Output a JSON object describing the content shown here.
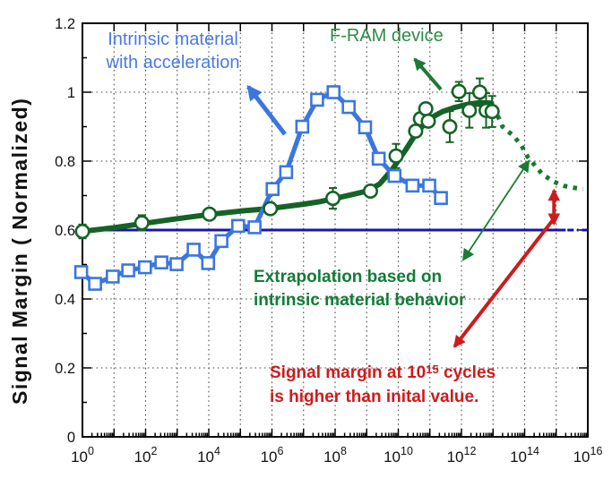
{
  "chart_data": {
    "type": "line",
    "title": "",
    "x_axis": {
      "scale": "log",
      "base_label": "10",
      "min_exponent": 0,
      "max_exponent": 16,
      "labeled_tick_exponents": [
        0,
        2,
        4,
        6,
        8,
        10,
        12,
        14,
        16
      ],
      "gridline_exponents": [
        1,
        2,
        3,
        4,
        5,
        6,
        7,
        8,
        9,
        10,
        11,
        12,
        13,
        14,
        15
      ]
    },
    "y_axis": {
      "label": "Signal Margin ( Normalized)",
      "min": 0,
      "max": 1.2,
      "ticks": [
        0,
        0.2,
        0.4,
        0.6,
        0.8,
        1.0,
        1.2
      ],
      "tick_labels": [
        "0",
        "0.2",
        "0.4",
        "0.6",
        "0.8",
        "1",
        "1.2"
      ],
      "gridline_values": [
        0.2,
        0.4,
        0.6,
        0.8,
        1.0
      ]
    },
    "series": [
      {
        "name": "Intrinsic material with acceleration",
        "marker": "square",
        "color": "#3b76e0",
        "points": [
          [
            -0.04,
            0.478
          ],
          [
            0.4,
            0.444
          ],
          [
            0.96,
            0.465
          ],
          [
            1.45,
            0.483
          ],
          [
            1.98,
            0.492
          ],
          [
            2.5,
            0.506
          ],
          [
            2.98,
            0.501
          ],
          [
            3.52,
            0.543
          ],
          [
            3.98,
            0.504
          ],
          [
            4.4,
            0.568
          ],
          [
            4.93,
            0.612
          ],
          [
            5.45,
            0.608
          ],
          [
            6.02,
            0.719
          ],
          [
            6.45,
            0.768
          ],
          [
            6.96,
            0.9
          ],
          [
            7.43,
            0.978
          ],
          [
            7.95,
            1.0
          ],
          [
            8.43,
            0.957
          ],
          [
            8.95,
            0.898
          ],
          [
            9.38,
            0.807
          ],
          [
            9.88,
            0.757
          ],
          [
            10.45,
            0.729
          ],
          [
            10.98,
            0.729
          ],
          [
            11.35,
            0.693
          ]
        ]
      },
      {
        "name": "F-RAM device",
        "marker": "circle",
        "color": "#156326",
        "points": [
          [
            0.0,
            0.596,
            0.02
          ],
          [
            1.88,
            0.621,
            0.022
          ],
          [
            4.02,
            0.646,
            0
          ],
          [
            5.95,
            0.662,
            0
          ],
          [
            7.93,
            0.692,
            0.03
          ],
          [
            9.12,
            0.713,
            0
          ],
          [
            9.93,
            0.815,
            0.035
          ],
          [
            10.55,
            0.887,
            0
          ],
          [
            10.7,
            0.923,
            0
          ],
          [
            10.87,
            0.952,
            0
          ],
          [
            10.95,
            0.916,
            0
          ],
          [
            11.63,
            0.9,
            0.045
          ],
          [
            11.92,
            1.002,
            0.028
          ],
          [
            12.25,
            0.947,
            0.05
          ],
          [
            12.58,
            1.0,
            0.04
          ],
          [
            12.78,
            0.947,
            0.05
          ],
          [
            12.97,
            0.944,
            0.045
          ]
        ],
        "trend": [
          [
            0,
            0.596
          ],
          [
            1,
            0.607
          ],
          [
            2,
            0.62
          ],
          [
            3,
            0.633
          ],
          [
            4,
            0.645
          ],
          [
            5,
            0.655
          ],
          [
            6,
            0.663
          ],
          [
            7,
            0.675
          ],
          [
            7.5,
            0.682
          ],
          [
            8,
            0.692
          ],
          [
            8.5,
            0.702
          ],
          [
            9,
            0.713
          ],
          [
            9.4,
            0.733
          ],
          [
            9.8,
            0.775
          ],
          [
            10.2,
            0.828
          ],
          [
            10.6,
            0.885
          ],
          [
            11.0,
            0.924
          ],
          [
            11.4,
            0.944
          ],
          [
            11.8,
            0.956
          ],
          [
            12.2,
            0.965
          ],
          [
            12.6,
            0.97
          ],
          [
            12.95,
            0.968
          ]
        ]
      },
      {
        "name": "Extrapolation based on intrinsic material behavior",
        "style": "dotted",
        "color": "#177a31",
        "points": [
          [
            13.02,
            0.958
          ],
          [
            13.3,
            0.9
          ],
          [
            13.65,
            0.873
          ],
          [
            13.9,
            0.845
          ],
          [
            14.1,
            0.812
          ],
          [
            14.35,
            0.785
          ],
          [
            14.55,
            0.763
          ],
          [
            14.9,
            0.741
          ],
          [
            15.25,
            0.728
          ],
          [
            15.6,
            0.722
          ],
          [
            15.85,
            0.719
          ]
        ]
      },
      {
        "name": "Initial value reference line",
        "style": "solid-then-dashdot",
        "color": "#1a13ad",
        "y": 0.6,
        "solid_to_exponent": 15.3
      }
    ]
  },
  "annotations": {
    "intrinsic_label": {
      "line1": "Intrinsic material",
      "line2": "with acceleration",
      "color": "#4a7ae8"
    },
    "fram_label": {
      "text": "F-RAM device",
      "color": "#2e8b47"
    },
    "extrapolation_note": {
      "line1": "Extrapolation based on",
      "line2": "intrinsic material behavior",
      "color": "#117c38"
    },
    "signal_note": {
      "line1_prefix": "Signal margin at 10",
      "line1_sup": "15",
      "line1_suffix": " cycles",
      "line2": "is higher than inital value.",
      "color": "#ce1b1b"
    },
    "arrows": [
      {
        "name": "intrinsic-label-arrow",
        "color": "#3b76e0",
        "width": 5,
        "from": [
          6.41,
          0.878
        ],
        "to": [
          5.25,
          1.016
        ],
        "heads": "end"
      },
      {
        "name": "fram-label-arrow",
        "color": "#1d7a35",
        "width": 4,
        "from": [
          11.35,
          1.008
        ],
        "to": [
          10.52,
          1.096
        ],
        "heads": "end"
      },
      {
        "name": "extrapolation-pointer-arrow",
        "color": "#1d7a35",
        "width": 1.8,
        "from": [
          12.06,
          0.514
        ],
        "to": [
          14.13,
          0.8
        ],
        "heads": "both"
      },
      {
        "name": "signal-pointer-arrow",
        "color": "#ce1b1b",
        "width": 4,
        "from": [
          14.9,
          0.63
        ],
        "to": [
          11.78,
          0.262
        ],
        "heads": "end"
      },
      {
        "name": "signal-range-arrow",
        "color": "#ce1b1b",
        "width": 4,
        "from": [
          14.93,
          0.618
        ],
        "to": [
          14.93,
          0.715
        ],
        "heads": "both"
      }
    ]
  }
}
